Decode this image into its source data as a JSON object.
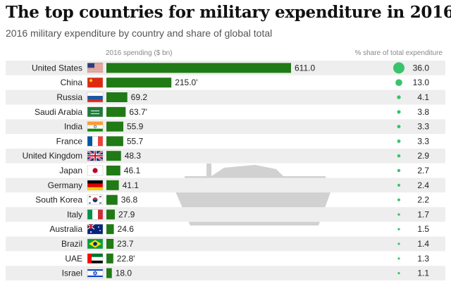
{
  "title": "The top countries for military expenditure in 2016",
  "subtitle": "2016 military expenditure by country and share of global total",
  "colors": {
    "bar": "#207a15",
    "share": "#39c36b",
    "stripe": "#eeeeee",
    "tank": "#c9c9c9"
  },
  "chart_data": {
    "type": "bar",
    "orientation": "horizontal",
    "title": "The top countries for military expenditure in 2016",
    "xlabel": "2016 spending ($ bn)",
    "share_label": "% share of total expenditure",
    "categories": [
      "United States",
      "China",
      "Russia",
      "Saudi Arabia",
      "India",
      "France",
      "United Kingdom",
      "Japan",
      "Germany",
      "South Korea",
      "Italy",
      "Australia",
      "Brazil",
      "UAE",
      "Israel"
    ],
    "flag_icons": [
      "us-flag-icon",
      "china-flag-icon",
      "russia-flag-icon",
      "saudi-arabia-flag-icon",
      "india-flag-icon",
      "france-flag-icon",
      "uk-flag-icon",
      "japan-flag-icon",
      "germany-flag-icon",
      "south-korea-flag-icon",
      "italy-flag-icon",
      "australia-flag-icon",
      "brazil-flag-icon",
      "uae-flag-icon",
      "israel-flag-icon"
    ],
    "values": [
      611.0,
      215.0,
      69.2,
      63.7,
      55.9,
      55.7,
      48.3,
      46.1,
      41.1,
      36.8,
      27.9,
      24.6,
      23.7,
      22.8,
      18.0
    ],
    "value_labels": [
      "611.0",
      "215.0'",
      "69.2",
      "63.7'",
      "55.9",
      "55.7",
      "48.3",
      "46.1",
      "41.1",
      "36.8",
      "27.9",
      "24.6",
      "23.7",
      "22.8'",
      "18.0"
    ],
    "share_values": [
      36.0,
      13.0,
      4.1,
      3.8,
      3.3,
      3.3,
      2.9,
      2.7,
      2.4,
      2.2,
      1.7,
      1.5,
      1.4,
      1.3,
      1.1
    ],
    "share_labels": [
      "36.0",
      "13.0",
      "4.1",
      "3.8",
      "3.3",
      "3.3",
      "2.9",
      "2.7",
      "2.4",
      "2.2",
      "1.7",
      "1.5",
      "1.4",
      "1.3",
      "1.1"
    ],
    "xlim": [
      0,
      611
    ]
  }
}
